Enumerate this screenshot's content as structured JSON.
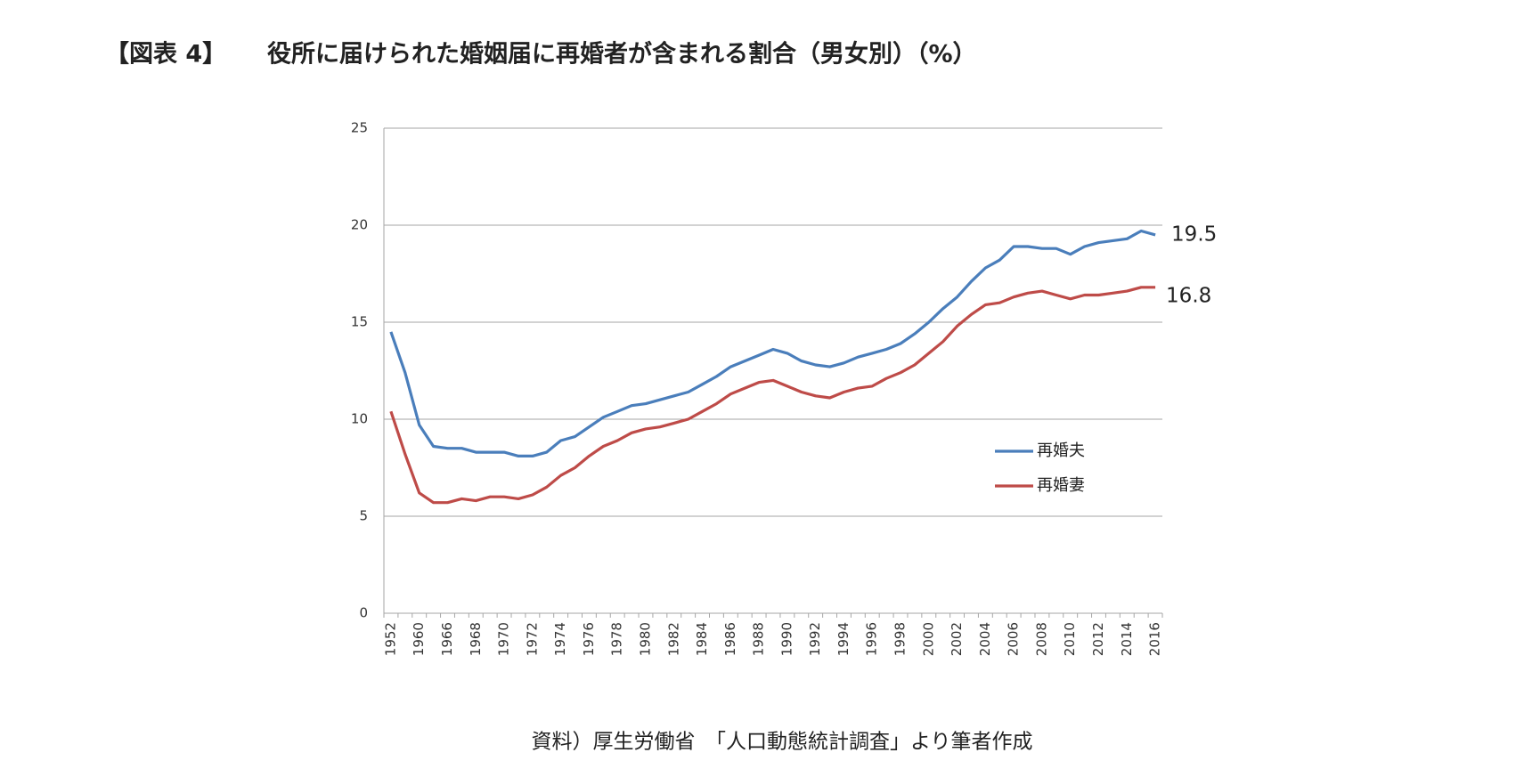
{
  "chart_data": {
    "type": "line",
    "label": "【図表 4】",
    "title": "役所に届けられた婚姻届に再婚者が含まれる割合（男女別）（%）",
    "source": "資料）厚生労働省　「人口動態統計調査」より筆者作成",
    "categories": [
      "1952",
      null,
      "1960",
      null,
      "1966",
      null,
      "1968",
      null,
      "1970",
      null,
      "1972",
      null,
      "1974",
      null,
      "1976",
      null,
      "1978",
      null,
      "1980",
      null,
      "1982",
      null,
      "1984",
      null,
      "1986",
      null,
      "1988",
      null,
      "1990",
      null,
      "1992",
      null,
      "1994",
      null,
      "1996",
      null,
      "1998",
      null,
      "2000",
      null,
      "2002",
      null,
      "2004",
      null,
      "2006",
      null,
      "2008",
      null,
      "2010",
      null,
      "2012",
      null,
      "2014",
      null,
      "2016"
    ],
    "series": [
      {
        "name": "再婚夫",
        "color": "#4a7ebb",
        "values": [
          14.5,
          12.4,
          9.7,
          8.6,
          8.5,
          8.5,
          8.3,
          8.3,
          8.3,
          8.1,
          8.1,
          8.3,
          8.9,
          9.1,
          9.6,
          10.1,
          10.4,
          10.7,
          10.8,
          11.0,
          11.2,
          11.4,
          11.8,
          12.2,
          12.7,
          13.0,
          13.3,
          13.6,
          13.4,
          13.0,
          12.8,
          12.7,
          12.9,
          13.2,
          13.4,
          13.6,
          13.9,
          14.4,
          15.0,
          15.7,
          16.3,
          17.1,
          17.8,
          18.2,
          18.9,
          18.9,
          18.8,
          18.8,
          18.5,
          18.9,
          19.1,
          19.2,
          19.3,
          19.7,
          19.5
        ]
      },
      {
        "name": "再婚妻",
        "color": "#be4b48",
        "values": [
          10.4,
          8.2,
          6.2,
          5.7,
          5.7,
          5.9,
          5.8,
          6.0,
          6.0,
          5.9,
          6.1,
          6.5,
          7.1,
          7.5,
          8.1,
          8.6,
          8.9,
          9.3,
          9.5,
          9.6,
          9.8,
          10.0,
          10.4,
          10.8,
          11.3,
          11.6,
          11.9,
          12.0,
          11.7,
          11.4,
          11.2,
          11.1,
          11.4,
          11.6,
          11.7,
          12.1,
          12.4,
          12.8,
          13.4,
          14.0,
          14.8,
          15.4,
          15.9,
          16.0,
          16.3,
          16.5,
          16.6,
          16.4,
          16.2,
          16.4,
          16.4,
          16.5,
          16.6,
          16.8,
          16.8
        ]
      }
    ],
    "ylim": [
      0,
      25
    ],
    "yticks": [
      0,
      5,
      10,
      15,
      20,
      25
    ],
    "grid": true
  }
}
